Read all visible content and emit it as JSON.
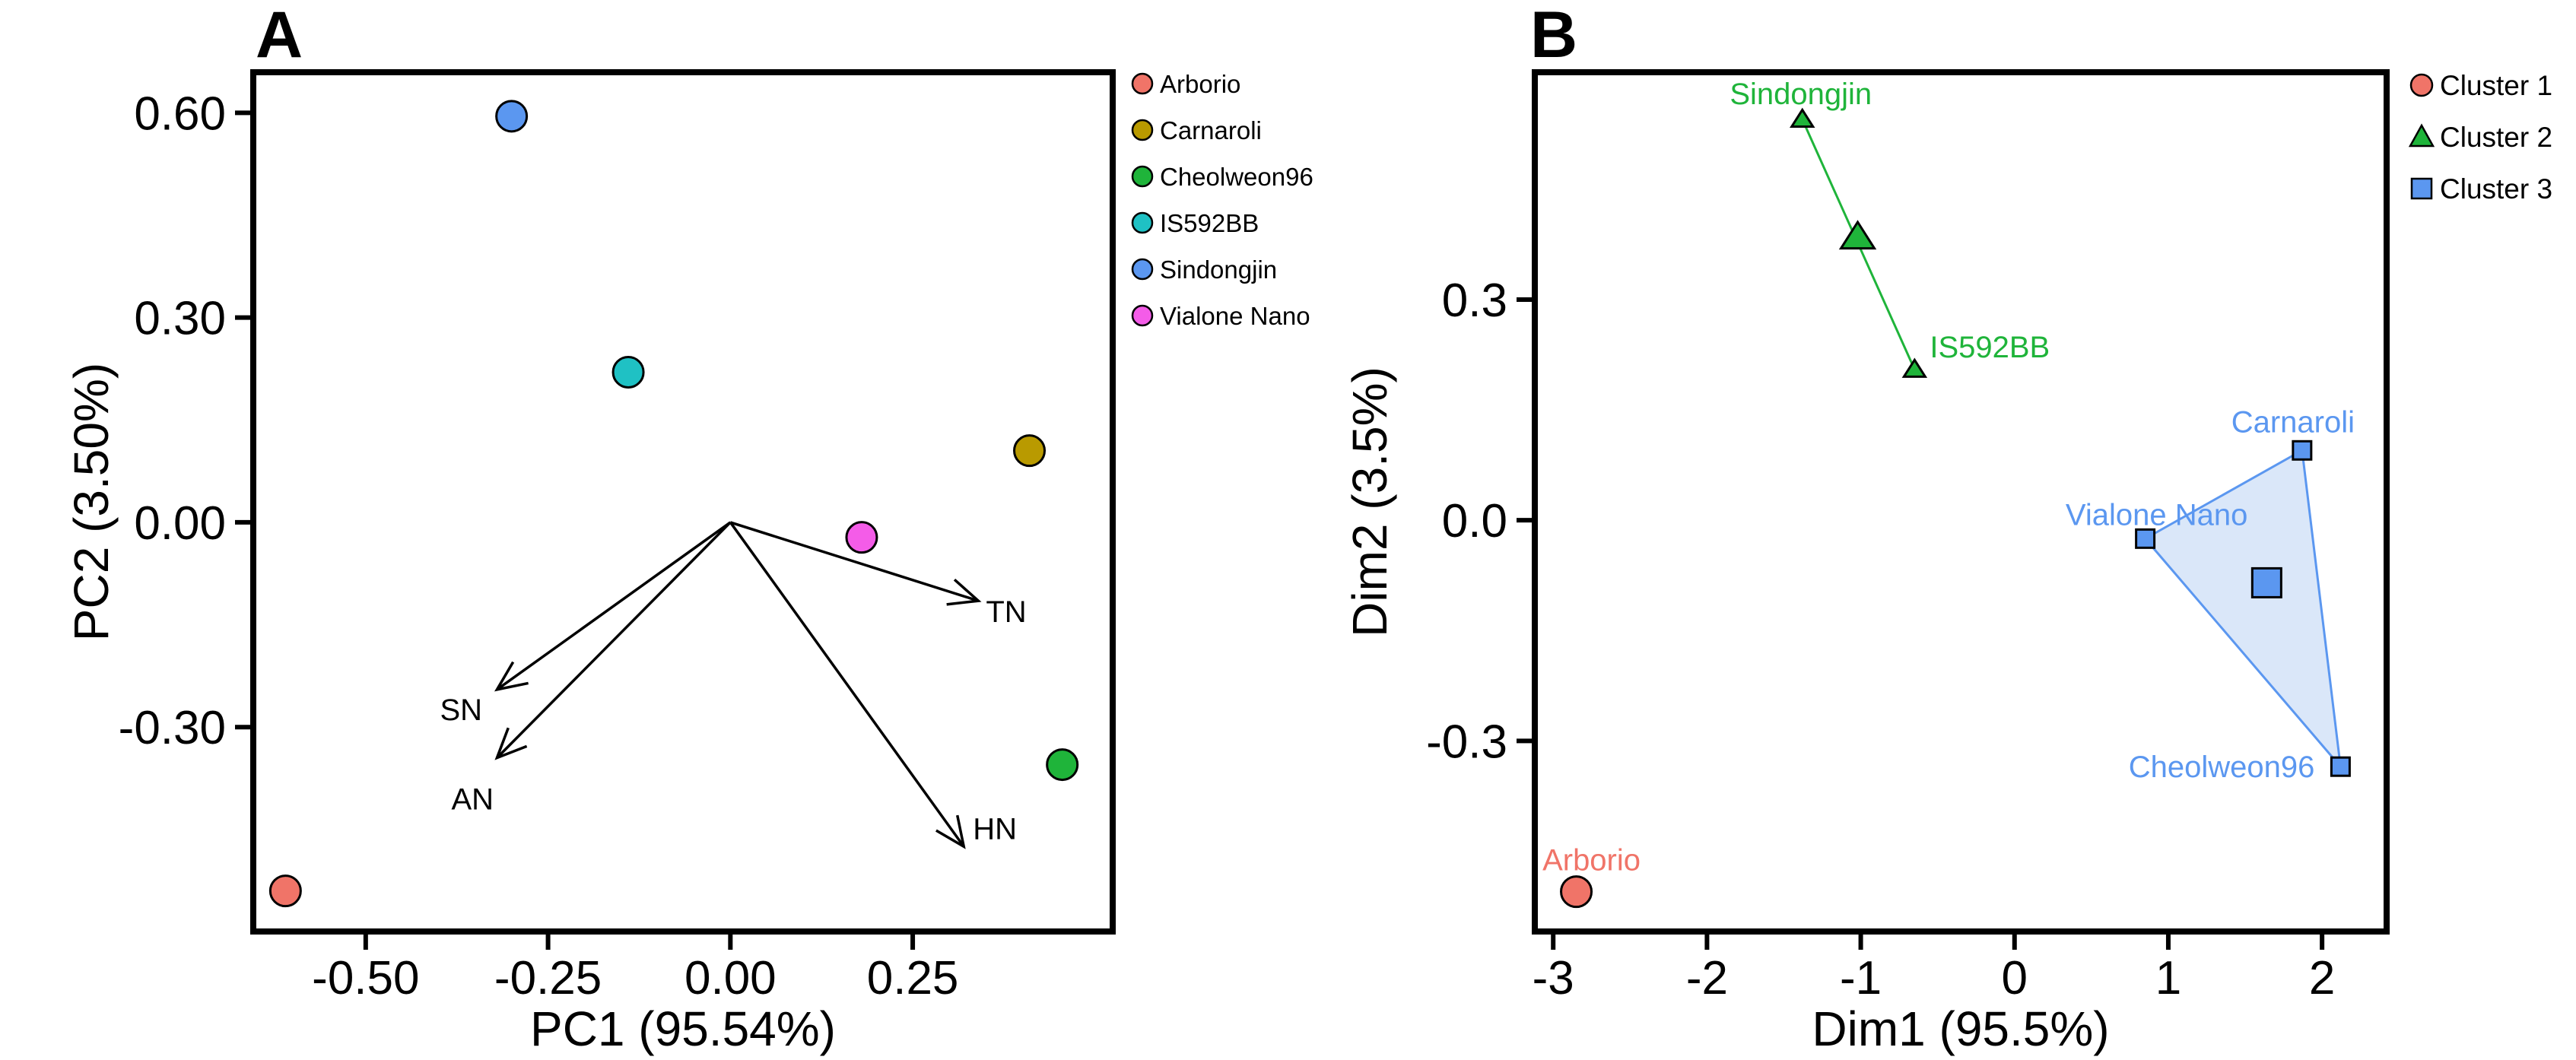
{
  "chart_data": [
    {
      "panel": "A",
      "type": "scatter",
      "subtype": "pca-biplot",
      "xlabel": "PC1 (95.54%)",
      "ylabel": "PC2 (3.50%)",
      "xlim": [
        -0.65,
        0.52
      ],
      "ylim": [
        -0.595,
        0.655
      ],
      "xticks": [
        -0.5,
        -0.25,
        0.0,
        0.25
      ],
      "xtick_labels": [
        "-0.50",
        "-0.25",
        "0.00",
        "0.25"
      ],
      "yticks": [
        0.6,
        0.3,
        0.0,
        -0.3
      ],
      "ytick_labels": [
        "0.60",
        "0.30",
        "0.00",
        "-0.30"
      ],
      "grid": false,
      "legend_position": "right",
      "series": [
        {
          "name": "Arborio",
          "color": "#F07468",
          "x": -0.61,
          "y": -0.54
        },
        {
          "name": "Carnaroli",
          "color": "#B99A00",
          "x": 0.41,
          "y": 0.105
        },
        {
          "name": "Cheolweon96",
          "color": "#1FB43A",
          "x": 0.455,
          "y": -0.355
        },
        {
          "name": "IS592BB",
          "color": "#1FC1C4",
          "x": -0.14,
          "y": 0.22
        },
        {
          "name": "Sindongjin",
          "color": "#5B97F0",
          "x": -0.3,
          "y": 0.595
        },
        {
          "name": "Vialone Nano",
          "color": "#F45CE8",
          "x": 0.18,
          "y": -0.022
        }
      ],
      "vectors": [
        {
          "label": "TN",
          "x": 0.34,
          "y": -0.115
        },
        {
          "label": "SN",
          "x": -0.32,
          "y": -0.245
        },
        {
          "label": "AN",
          "x": -0.32,
          "y": -0.345
        },
        {
          "label": "HN",
          "x": 0.32,
          "y": -0.475
        }
      ]
    },
    {
      "panel": "B",
      "type": "scatter",
      "subtype": "cluster-plot",
      "xlabel": "Dim1 (95.5%)",
      "ylabel": "Dim2 (3.5%)",
      "xlim": [
        -3.1,
        2.4
      ],
      "ylim": [
        -0.555,
        0.605
      ],
      "xticks": [
        -3,
        -2,
        -1,
        0,
        1,
        2
      ],
      "xtick_labels": [
        "-3",
        "-2",
        "-1",
        "0",
        "1",
        "2"
      ],
      "yticks": [
        0.3,
        0.0,
        -0.3
      ],
      "ytick_labels": [
        "0.3",
        "0.0",
        "-0.3"
      ],
      "grid": false,
      "legend_position": "right",
      "clusters": [
        {
          "name": "Cluster 1",
          "color": "#F07468",
          "marker": "circle",
          "points": [
            {
              "label": "Arborio",
              "x": -2.85,
              "y": -0.505
            }
          ],
          "centroid": null
        },
        {
          "name": "Cluster 2",
          "color": "#1FB43A",
          "marker": "triangle",
          "points": [
            {
              "label": "Sindongjin",
              "x": -1.38,
              "y": 0.545
            },
            {
              "label": "IS592BB",
              "x": -0.65,
              "y": 0.205
            }
          ],
          "centroid": {
            "x": -1.02,
            "y": 0.385
          }
        },
        {
          "name": "Cluster 3",
          "color": "#5B97F0",
          "marker": "square",
          "points": [
            {
              "label": "Carnaroli",
              "x": 1.87,
              "y": 0.095
            },
            {
              "label": "Vialone Nano",
              "x": 0.85,
              "y": -0.025
            },
            {
              "label": "Cheolweon96",
              "x": 2.12,
              "y": -0.335
            }
          ],
          "centroid": {
            "x": 1.64,
            "y": -0.085
          }
        }
      ]
    }
  ],
  "colors": {
    "axis": "#000000",
    "hull_fill": "#D6E4F8",
    "cluster2_line": "#1FB43A",
    "cluster3_line": "#5B97F0"
  }
}
